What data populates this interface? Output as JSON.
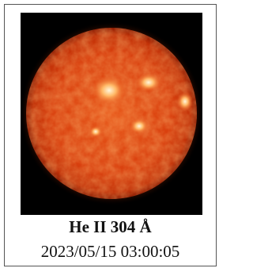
{
  "image": {
    "caption": "He II 304 Å",
    "timestamp": "2023/05/15 03:00:05"
  }
}
